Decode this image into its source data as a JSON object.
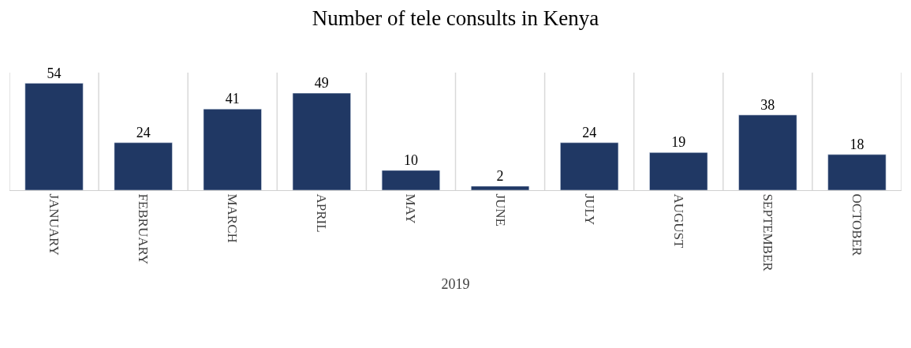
{
  "chart_data": {
    "type": "bar",
    "title": "Number of tele consults in Kenya",
    "xlabel": "2019",
    "categories": [
      "JANUARY",
      "FEBRUARY",
      "MARCH",
      "APRIL",
      "MAY",
      "JUNE",
      "JULY",
      "AUGUST",
      "SEPTEMBER",
      "OCTOBER"
    ],
    "values": [
      54,
      24,
      41,
      49,
      10,
      2,
      24,
      19,
      38,
      18
    ],
    "color": "#203864",
    "data_labels": true,
    "grid": "x",
    "legend": false,
    "tick_labels": "x"
  }
}
